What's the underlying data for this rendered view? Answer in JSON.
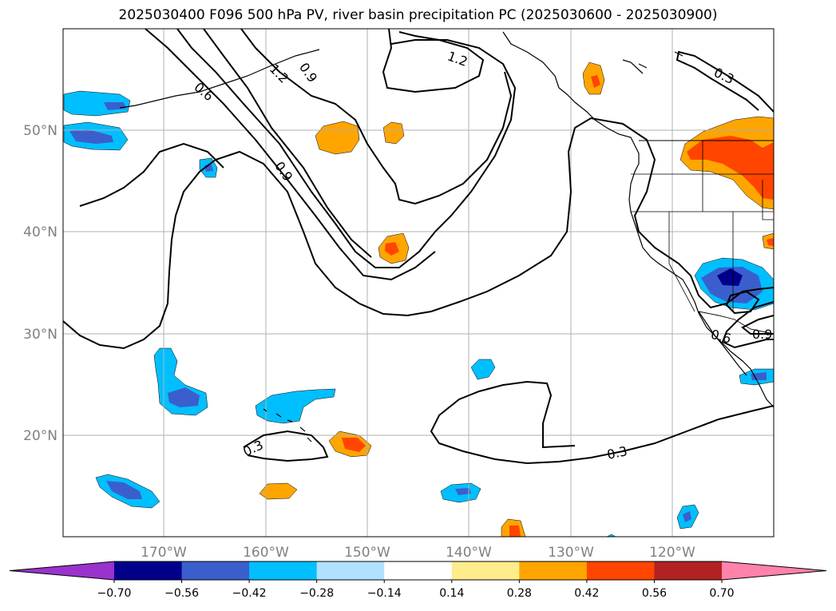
{
  "title": "2025030400 F096 500 hPa PV, river basin precipitation PC (2025030600 - 2025030900)",
  "lon_ticks": [
    "170°W",
    "160°W",
    "150°W",
    "140°W",
    "130°W",
    "120°W"
  ],
  "lat_ticks": [
    "50°N",
    "40°N",
    "30°N",
    "20°N"
  ],
  "contour_labels": [
    "1.2",
    "1.2",
    "0.9",
    "0.6",
    "0.9",
    "0.3",
    "0.6",
    "0.9",
    "0.3",
    "0.3"
  ],
  "colorbar": {
    "colors": [
      "#9a32cd",
      "#00008b",
      "#3a5fcd",
      "#00bfff",
      "#b0e2ff",
      "#ffffff",
      "#ffec8b",
      "#ffa500",
      "#ff4500",
      "#b22222",
      "#ff82ab"
    ],
    "tick_labels": [
      "−0.70",
      "−0.56",
      "−0.42",
      "−0.28",
      "−0.14",
      "0.14",
      "0.28",
      "0.42",
      "0.56",
      "0.70"
    ]
  }
}
